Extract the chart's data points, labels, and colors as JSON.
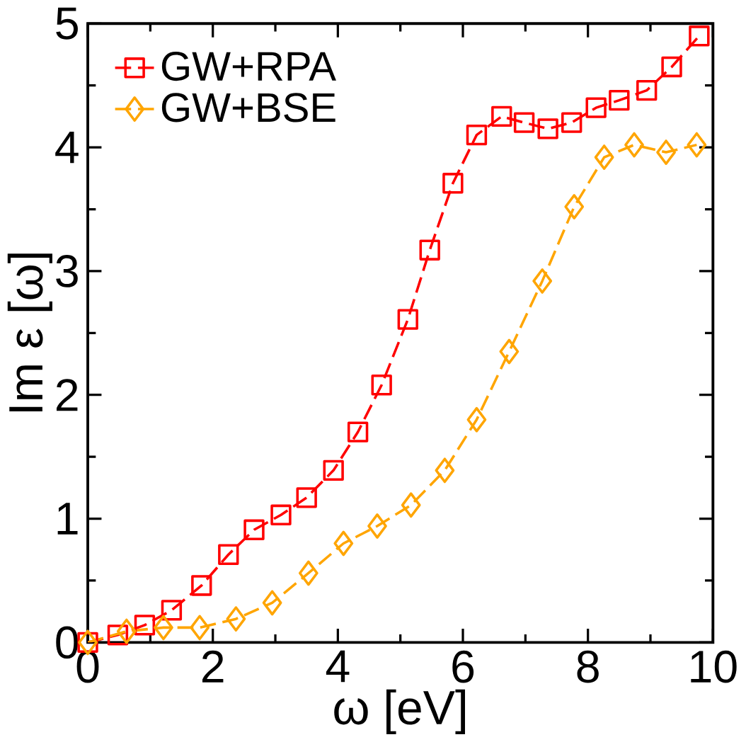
{
  "chart_data": {
    "type": "line",
    "xlabel": "ω [eV]",
    "ylabel": "Im ε [ω]",
    "xlim": [
      0,
      10
    ],
    "ylim": [
      0,
      5
    ],
    "xticks": [
      0,
      2,
      4,
      6,
      8,
      10
    ],
    "yticks": [
      0,
      1,
      2,
      3,
      4,
      5
    ],
    "legend": "top left",
    "line_style": "dashed",
    "grid": false,
    "series": [
      {
        "name": "GW+RPA",
        "color": "#ff0000",
        "marker": "square",
        "x": [
          0,
          0.48,
          0.91,
          1.34,
          1.82,
          2.25,
          2.66,
          3.09,
          3.5,
          3.93,
          4.32,
          4.7,
          5.12,
          5.47,
          5.84,
          6.22,
          6.62,
          6.98,
          7.36,
          7.74,
          8.13,
          8.5,
          8.94,
          9.34,
          9.78
        ],
        "values": [
          0,
          0.06,
          0.14,
          0.26,
          0.46,
          0.71,
          0.91,
          1.03,
          1.17,
          1.39,
          1.7,
          2.08,
          2.61,
          3.17,
          3.71,
          4.1,
          4.25,
          4.2,
          4.15,
          4.2,
          4.32,
          4.38,
          4.46,
          4.65,
          4.9
        ]
      },
      {
        "name": "GW+BSE",
        "color": "#ffa500",
        "marker": "diamond",
        "x": [
          0,
          0.62,
          1.21,
          1.79,
          2.37,
          2.95,
          3.53,
          4.09,
          4.63,
          5.17,
          5.71,
          6.22,
          6.74,
          7.27,
          7.78,
          8.26,
          8.74,
          9.25,
          9.74
        ],
        "values": [
          0,
          0.09,
          0.12,
          0.12,
          0.19,
          0.32,
          0.56,
          0.8,
          0.94,
          1.11,
          1.39,
          1.8,
          2.35,
          2.92,
          3.52,
          3.92,
          4.02,
          3.96,
          4.02
        ]
      }
    ]
  }
}
